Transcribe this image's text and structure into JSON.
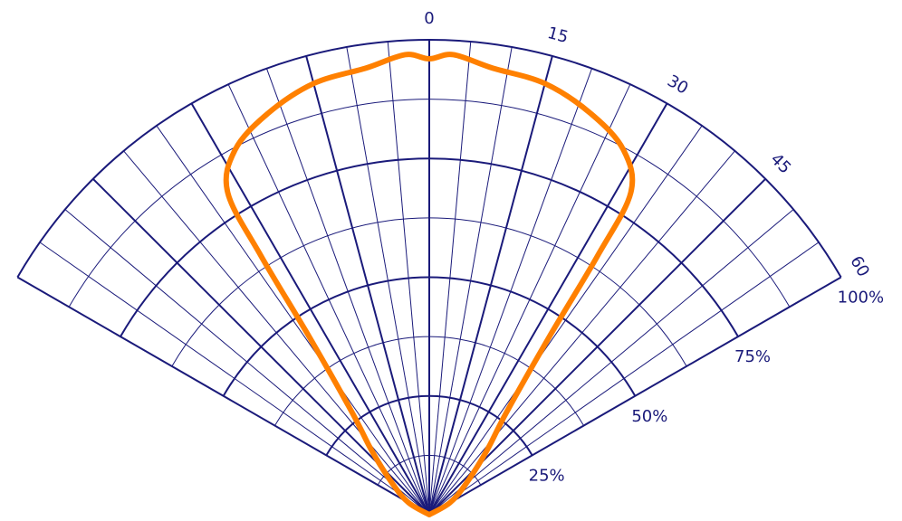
{
  "chart_data": {
    "type": "polar",
    "angle_unit": "degrees",
    "angle_range": [
      -60,
      60
    ],
    "angle_ticks": [
      0,
      15,
      30,
      45,
      60
    ],
    "angle_tick_labels": [
      "0",
      "15",
      "30",
      "45",
      "60"
    ],
    "radial_range": [
      0,
      100
    ],
    "radial_ticks": [
      25,
      50,
      75,
      100
    ],
    "radial_tick_labels": [
      "25%",
      "50%",
      "75%",
      "100%"
    ],
    "series": [
      {
        "color": "#ff8000",
        "theta": [
          -90,
          -60,
          -50,
          -42,
          -37,
          -34,
          -33,
          -32,
          -28,
          -22,
          -15,
          -8,
          -3,
          0,
          3,
          8,
          15,
          22,
          28,
          32,
          33,
          34,
          37,
          42,
          50,
          60,
          90
        ],
        "r": [
          0,
          5,
          10,
          18,
          27,
          45,
          65,
          80,
          87,
          91,
          94,
          95,
          97,
          96,
          97,
          95,
          94,
          91,
          87,
          80,
          65,
          45,
          27,
          18,
          10,
          5,
          0
        ]
      }
    ]
  },
  "colors": {
    "grid": "#1a1a7a",
    "series": "#ff8000",
    "background": "#ffffff"
  }
}
